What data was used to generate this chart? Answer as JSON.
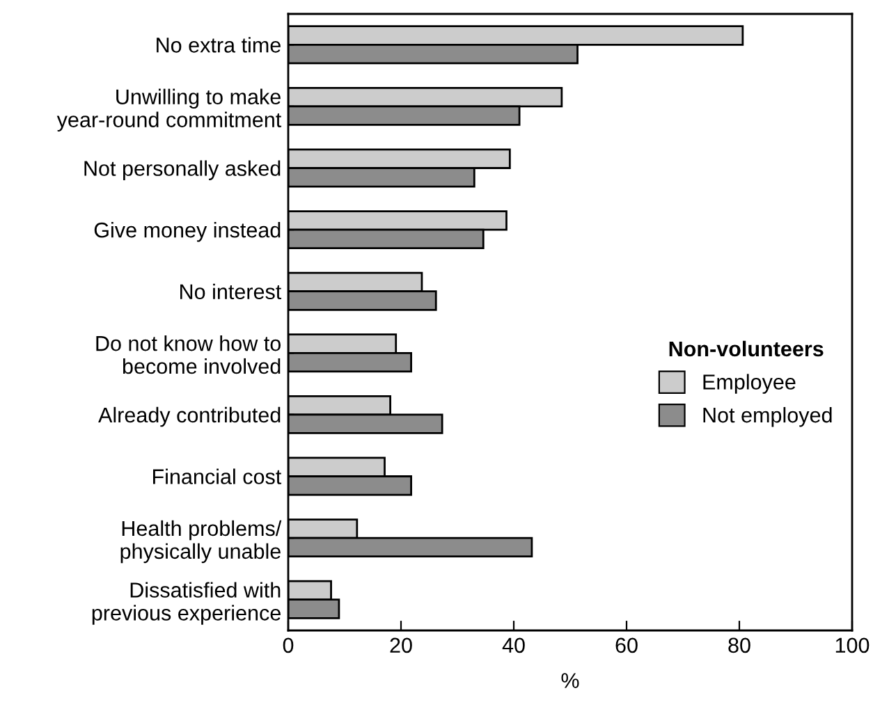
{
  "chart_data": {
    "type": "bar",
    "orientation": "horizontal",
    "xlabel": "%",
    "legend_title": "Non-volunteers",
    "legend": "right",
    "categories": [
      "No extra time",
      "Unwilling to make\nyear-round commitment",
      "Not personally asked",
      "Give money instead",
      "No interest",
      "Do not know how to\nbecome involved",
      "Already contributed",
      "Financial cost",
      "Health problems/\nphysically unable",
      "Dissatisfied with\nprevious experience"
    ],
    "series": [
      {
        "name": "Employee",
        "color": "#cccccc",
        "values": [
          80.6,
          48.5,
          39.3,
          38.7,
          23.7,
          19.1,
          18.1,
          17.1,
          12.2,
          7.6
        ]
      },
      {
        "name": "Not employed",
        "color": "#8c8c8c",
        "values": [
          51.3,
          41.0,
          33.0,
          34.6,
          26.2,
          21.8,
          27.3,
          21.8,
          43.2,
          9.0
        ]
      }
    ],
    "xlim": [
      0,
      100
    ],
    "xticks": [
      0,
      20,
      40,
      60,
      80,
      100
    ],
    "grid": false
  }
}
